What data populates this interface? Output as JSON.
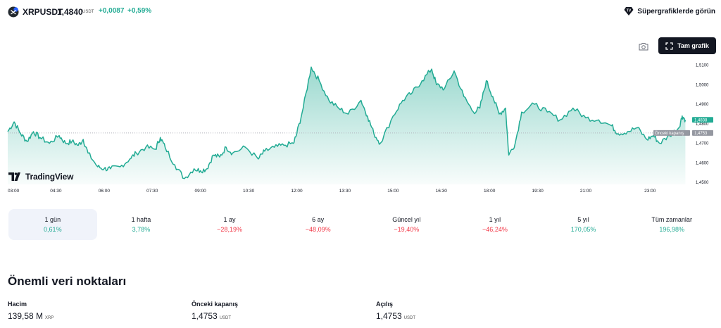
{
  "header": {
    "symbol": "XRPUSDT",
    "price": "1,4840",
    "price_unit": "USDT",
    "change_abs": "+0,0087",
    "change_pct": "+0,59%",
    "supercharts_link": "Süpergrafiklerde görün",
    "symbol_icon": "xrp-coin-icon",
    "supercharts_icon": "supercharts-badge-icon"
  },
  "chart_toolbar": {
    "snapshot_icon": "camera-icon",
    "fullscreen_label": "Tam grafik",
    "fullscreen_icon": "expand-icon"
  },
  "branding": {
    "logo_text": "TradingView",
    "logo_icon": "tradingview-logo-icon"
  },
  "chart_data": {
    "type": "area",
    "x_ticks": [
      "03:00",
      "04:30",
      "06:00",
      "07:30",
      "09:00",
      "10:30",
      "12:00",
      "13:30",
      "15:00",
      "16:30",
      "18:00",
      "19:30",
      "21:00",
      "23:00"
    ],
    "y_ticks": [
      "1,5100",
      "1,5000",
      "1,4900",
      "1,4800",
      "1,4700",
      "1,4600",
      "1,4500"
    ],
    "ylim": [
      1.449,
      1.5145
    ],
    "xlim": [
      3.0,
      24.2
    ],
    "series": [
      {
        "x": [
          3.0,
          3.2,
          3.4,
          3.6,
          3.8,
          4.0,
          4.3,
          4.6,
          4.8,
          5.0,
          5.2,
          5.35,
          5.5,
          5.8,
          6.0,
          6.2,
          6.5,
          6.8,
          7.0,
          7.3,
          7.6,
          7.75,
          7.9,
          8.2,
          8.5,
          8.8,
          9.0,
          9.2,
          9.4,
          9.6,
          9.8,
          10.0,
          10.4,
          10.8,
          11.0,
          11.3,
          11.6,
          11.9,
          12.0,
          12.2,
          12.45,
          12.7,
          13.0,
          13.3,
          13.6,
          14.0,
          14.2,
          14.4,
          14.6,
          15.0,
          15.3,
          15.6,
          15.9,
          16.2,
          16.35,
          16.6,
          16.9,
          17.2,
          17.5,
          17.7,
          17.9,
          18.1,
          18.3,
          18.5,
          18.6,
          18.8,
          19.0,
          19.4,
          19.8,
          20.2,
          20.6,
          21.0,
          21.4,
          21.8,
          22.0,
          22.3,
          22.6,
          22.9,
          23.1,
          23.3,
          23.6,
          23.9,
          24.0,
          24.1
        ],
        "y": [
          1.476,
          1.481,
          1.475,
          1.471,
          1.476,
          1.473,
          1.47,
          1.474,
          1.47,
          1.471,
          1.469,
          1.472,
          1.465,
          1.458,
          1.457,
          1.457,
          1.458,
          1.462,
          1.465,
          1.468,
          1.467,
          1.473,
          1.468,
          1.459,
          1.452,
          1.457,
          1.456,
          1.457,
          1.464,
          1.463,
          1.468,
          1.465,
          1.468,
          1.462,
          1.466,
          1.468,
          1.469,
          1.47,
          1.475,
          1.488,
          1.509,
          1.502,
          1.492,
          1.488,
          1.485,
          1.492,
          1.484,
          1.475,
          1.47,
          1.484,
          1.492,
          1.496,
          1.502,
          1.508,
          1.5,
          1.498,
          1.507,
          1.494,
          1.486,
          1.488,
          1.502,
          1.494,
          1.485,
          1.488,
          1.464,
          1.47,
          1.486,
          1.49,
          1.486,
          1.482,
          1.488,
          1.483,
          1.482,
          1.479,
          1.475,
          1.476,
          1.478,
          1.472,
          1.474,
          1.47,
          1.474,
          1.478,
          1.484,
          1.482
        ],
        "color": "#22ab94"
      }
    ],
    "previous_close": {
      "value": 1.4753,
      "label": "Önceki kapanış",
      "value_label": "1,4753"
    },
    "last_price_label": "1,4838",
    "grid": false,
    "accent_color": "#22ab94"
  },
  "periods": [
    {
      "label": "1 gün",
      "value": "0,61%",
      "trend": "pos",
      "active": true
    },
    {
      "label": "1 hafta",
      "value": "3,78%",
      "trend": "pos",
      "active": false
    },
    {
      "label": "1 ay",
      "value": "−28,19%",
      "trend": "neg",
      "active": false
    },
    {
      "label": "6 ay",
      "value": "−48,09%",
      "trend": "neg",
      "active": false
    },
    {
      "label": "Güncel yıl",
      "value": "−19,40%",
      "trend": "neg",
      "active": false
    },
    {
      "label": "1 yıl",
      "value": "−46,24%",
      "trend": "neg",
      "active": false
    },
    {
      "label": "5 yıl",
      "value": "170,05%",
      "trend": "pos",
      "active": false
    },
    {
      "label": "Tüm zamanlar",
      "value": "196,98%",
      "trend": "pos",
      "active": false
    }
  ],
  "key_data": {
    "title": "Önemli veri noktaları",
    "items": [
      {
        "label": "Hacim",
        "value": "139,58 M",
        "unit": "XRP"
      },
      {
        "label": "Önceki kapanış",
        "value": "1,4753",
        "unit": "USDT"
      },
      {
        "label": "Açılış",
        "value": "1,4753",
        "unit": "USDT"
      }
    ]
  }
}
